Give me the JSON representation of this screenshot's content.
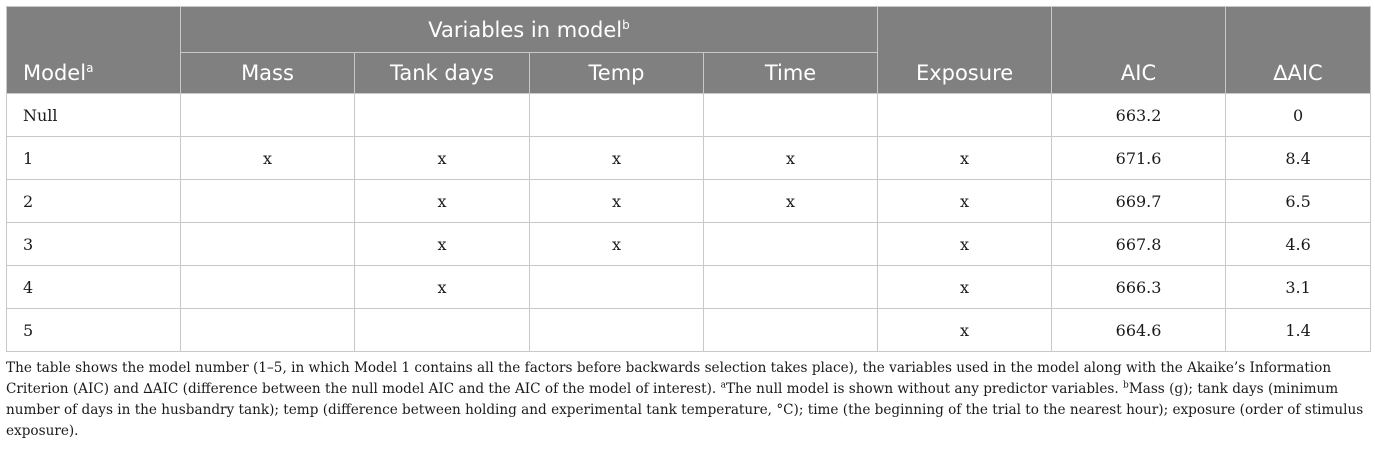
{
  "table": {
    "header": {
      "model": "Model",
      "model_sup": "a",
      "variables_group": "Variables in model",
      "variables_group_sup": "b",
      "variables": [
        "Mass",
        "Tank days",
        "Temp",
        "Time"
      ],
      "exposure": "Exposure",
      "aic": "AIC",
      "delta_aic": "∆AIC"
    },
    "rows": [
      {
        "model": "Null",
        "mass": "",
        "tank_days": "",
        "temp": "",
        "time": "",
        "exposure": "",
        "aic": "663.2",
        "delta_aic": "0"
      },
      {
        "model": "1",
        "mass": "x",
        "tank_days": "x",
        "temp": "x",
        "time": "x",
        "exposure": "x",
        "aic": "671.6",
        "delta_aic": "8.4"
      },
      {
        "model": "2",
        "mass": "",
        "tank_days": "x",
        "temp": "x",
        "time": "x",
        "exposure": "x",
        "aic": "669.7",
        "delta_aic": "6.5"
      },
      {
        "model": "3",
        "mass": "",
        "tank_days": "x",
        "temp": "x",
        "time": "",
        "exposure": "x",
        "aic": "667.8",
        "delta_aic": "4.6"
      },
      {
        "model": "4",
        "mass": "",
        "tank_days": "x",
        "temp": "",
        "time": "",
        "exposure": "x",
        "aic": "666.3",
        "delta_aic": "3.1"
      },
      {
        "model": "5",
        "mass": "",
        "tank_days": "",
        "temp": "",
        "time": "",
        "exposure": "x",
        "aic": "664.6",
        "delta_aic": "1.4"
      }
    ]
  },
  "footnote": {
    "text_main": "The table shows the model number (1–5, in which Model 1 contains all the factors before backwards selection takes place), the variables used in the model along with the Akaike’s Information Criterion (AIC) and ∆AIC (difference between the null model AIC and the AIC of the model of interest). ",
    "sup_a": "a",
    "text_a": "The null model is shown without any predictor variables. ",
    "sup_b": "b",
    "text_b": "Mass (g); tank days (minimum number of days in the husbandry tank); temp (difference between holding and experimental tank temperature, °C); time (the beginning of the trial to the nearest hour); exposure (order of stimulus exposure)."
  }
}
